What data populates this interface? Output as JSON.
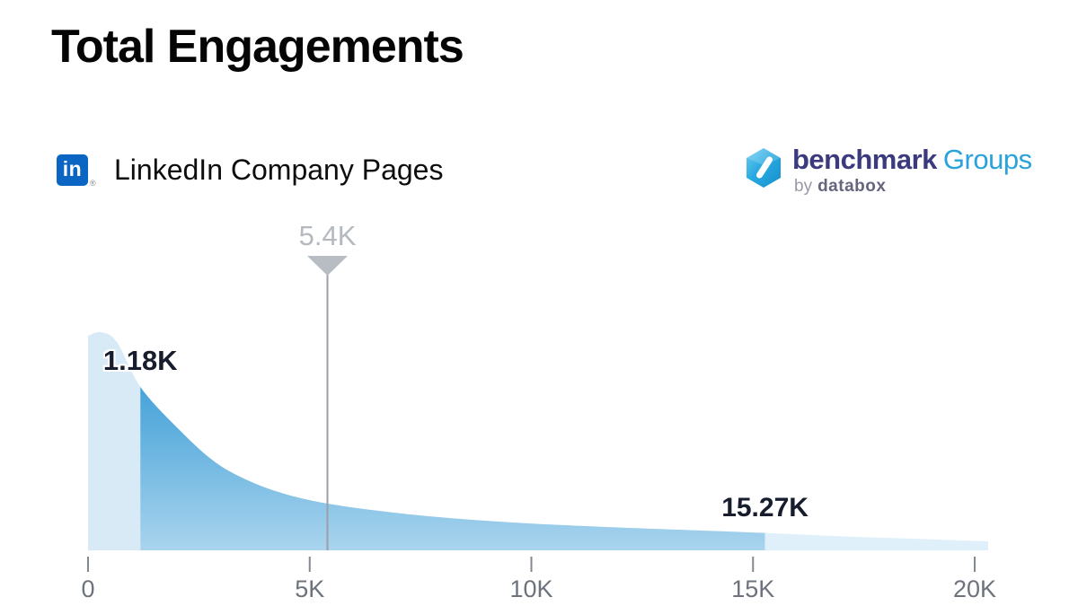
{
  "title": "Total Engagements",
  "source": {
    "icon_text": "in",
    "trademark": "®",
    "label": "LinkedIn Company Pages"
  },
  "brand": {
    "primary": "benchmark",
    "secondary": "Groups",
    "byline_prefix": "by",
    "byline_name": "databox"
  },
  "chart_data": {
    "type": "area",
    "title": "Total Engagements",
    "subtitle": "LinkedIn Company Pages",
    "legend": "none",
    "grid": false,
    "x_axis": {
      "range_k": [
        0,
        20.3
      ],
      "ticks": [
        {
          "label": "0",
          "value_k": 0
        },
        {
          "label": "5K",
          "value_k": 5
        },
        {
          "label": "10K",
          "value_k": 10
        },
        {
          "label": "15K",
          "value_k": 15
        },
        {
          "label": "20K",
          "value_k": 20
        }
      ]
    },
    "annotations": [
      {
        "id": "lower-quartile",
        "label": "1.18K",
        "value_k": 1.18
      },
      {
        "id": "median",
        "label": "5.4K",
        "value_k": 5.4
      },
      {
        "id": "upper-quartile",
        "label": "15.27K",
        "value_k": 15.27
      }
    ],
    "density_curve": [
      [
        0,
        0.983
      ],
      [
        0.284,
        1.0
      ],
      [
        0.648,
        0.955
      ],
      [
        1.196,
        0.745
      ],
      [
        2.067,
        0.551
      ],
      [
        2.877,
        0.403
      ],
      [
        3.688,
        0.313
      ],
      [
        4.498,
        0.255
      ],
      [
        5.41,
        0.214
      ],
      [
        6.727,
        0.177
      ],
      [
        8.146,
        0.148
      ],
      [
        9.989,
        0.123
      ],
      [
        12.198,
        0.103
      ],
      [
        14.994,
        0.082
      ],
      [
        17.264,
        0.062
      ],
      [
        18.682,
        0.053
      ],
      [
        20.304,
        0.041
      ]
    ],
    "segments": [
      {
        "from_k": 0,
        "to_k": 1.18,
        "role": "below-lower-quartile"
      },
      {
        "from_k": 1.18,
        "to_k": 15.27,
        "role": "interquartile"
      },
      {
        "from_k": 15.27,
        "to_k": 20.3,
        "role": "above-upper-quartile"
      }
    ]
  },
  "colors": {
    "background": "#ffffff",
    "segment_left": "#d9eaf7",
    "segment_right": "#e0f0fa",
    "gradient_top": "#2b93d3",
    "gradient_mid": "#5fafde",
    "gradient_bottom": "#a9d4ee",
    "marker_line": "#9aa0a6",
    "marker_triangle": "#b7bdc2",
    "median_label": "#b3b9bf",
    "annotation_dark": "#171d2c",
    "axis_tick": "#828990",
    "axis_label": "#6d737d",
    "linkedin_blue": "#0a66c2",
    "brand_navy": "#3b3a7e",
    "brand_blue": "#2aa2dc",
    "brand_byline": "#9898a6",
    "brand_databox": "#65657f",
    "title_color": "#050505"
  }
}
